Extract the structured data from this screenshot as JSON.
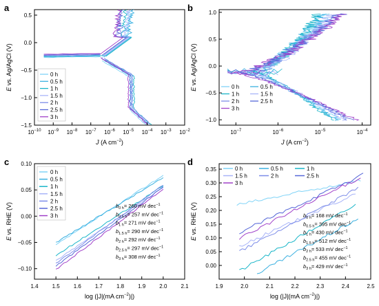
{
  "chart_data": [
    {
      "panel": "a",
      "type": "line",
      "xlabel_var": "J",
      "xlabel_unit": " (A cm",
      "xlabel_exp": "−2",
      "xlabel_close": ")",
      "ylabel_var": "E",
      "ylabel_rest": " vs. Ag/AgCl (V)",
      "x_scale": "log",
      "xlim": [
        1e-10,
        0.01
      ],
      "ylim": [
        -1.5,
        0.6
      ],
      "xticks": [
        -10,
        -9,
        -8,
        -7,
        -6,
        -5,
        -4,
        -3,
        -2
      ],
      "xtick_labels": [
        "10",
        "10",
        "10",
        "10",
        "10",
        "10",
        "10",
        "10",
        "10"
      ],
      "xtick_exps": [
        "−10",
        "−9",
        "−8",
        "−7",
        "−6",
        "−5",
        "−4",
        "−3",
        "−2"
      ],
      "yticks": [
        -1.5,
        -1.0,
        -0.5,
        0.0,
        0.5
      ],
      "ytick_labels": [
        "−1.5",
        "−1.0",
        "−0.5",
        "0.0",
        "0.5"
      ],
      "legend_position": "bottom-left",
      "legend_labels": [
        "0 h",
        "0.5 h",
        "1 h",
        "1.5 h",
        "2 h",
        "2.5 h",
        "3 h"
      ],
      "series_colors": [
        "#7fd3f7",
        "#3ab0e0",
        "#18b5c8",
        "#a8b4f8",
        "#7c8ce8",
        "#5566d8",
        "#a040c8"
      ],
      "series": [
        {
          "Ecorr": -0.27,
          "Jcorr_log": -6.4,
          "pass_log": -5.1
        },
        {
          "Ecorr": -0.26,
          "Jcorr_log": -6.3,
          "pass_log": -5.0
        },
        {
          "Ecorr": -0.25,
          "Jcorr_log": -6.2,
          "pass_log": -5.3
        },
        {
          "Ecorr": -0.24,
          "Jcorr_log": -6.3,
          "pass_log": -5.2
        },
        {
          "Ecorr": -0.22,
          "Jcorr_log": -6.3,
          "pass_log": -5.5
        },
        {
          "Ecorr": -0.23,
          "Jcorr_log": -6.4,
          "pass_log": -5.6
        },
        {
          "Ecorr": -0.21,
          "Jcorr_log": -6.5,
          "pass_log": -5.7
        }
      ]
    },
    {
      "panel": "b",
      "type": "line",
      "xlabel_var": "J",
      "xlabel_unit": " (A cm",
      "xlabel_exp": "−2",
      "xlabel_close": ")",
      "ylabel_var": "E",
      "ylabel_rest": " vs. Ag/AgCl (V)",
      "x_scale": "log",
      "xlim": [
        4e-08,
        0.00016
      ],
      "ylim": [
        -1.1,
        1.05
      ],
      "xticks": [
        -7,
        -6,
        -5,
        -4
      ],
      "xtick_labels": [
        "10",
        "10",
        "10",
        "10"
      ],
      "xtick_exps": [
        "−7",
        "−6",
        "−5",
        "−4"
      ],
      "yticks": [
        -1.0,
        -0.5,
        0.0,
        0.5,
        1.0
      ],
      "ytick_labels": [
        "−1.0",
        "−0.5",
        "0.0",
        "0.5",
        "1.0"
      ],
      "legend_position": "bottom-left",
      "legend_labels": [
        "0 h",
        "0.5 h",
        "1 h",
        "1.5 h",
        "2 h",
        "2.5 h",
        "3 h"
      ],
      "series_colors": [
        "#7fd3f7",
        "#3ab0e0",
        "#18b5c8",
        "#a8b4f8",
        "#7c8ce8",
        "#5566d8",
        "#a040c8"
      ],
      "series": [
        {
          "Ecorr": -0.12,
          "Jlow_log": -6.7,
          "Jtop_log": -4.8
        },
        {
          "Ecorr": -0.1,
          "Jlow_log": -6.6,
          "Jtop_log": -4.9
        },
        {
          "Ecorr": -0.11,
          "Jlow_log": -6.5,
          "Jtop_log": -5.0
        },
        {
          "Ecorr": -0.13,
          "Jlow_log": -6.6,
          "Jtop_log": -4.7
        },
        {
          "Ecorr": -0.14,
          "Jlow_log": -6.8,
          "Jtop_log": -4.6
        },
        {
          "Ecorr": -0.12,
          "Jlow_log": -6.9,
          "Jtop_log": -4.5
        },
        {
          "Ecorr": -0.13,
          "Jlow_log": -7.0,
          "Jtop_log": -4.4
        }
      ]
    },
    {
      "panel": "c",
      "type": "line",
      "xlabel_text": "log (|J|(mA cm",
      "xlabel_exp": "−2",
      "xlabel_close": ")|)",
      "ylabel_var": "E",
      "ylabel_rest": " vs. RHE (V)",
      "xlim": [
        1.4,
        2.1
      ],
      "ylim": [
        -0.12,
        0.1
      ],
      "xticks": [
        1.4,
        1.5,
        1.6,
        1.7,
        1.8,
        1.9,
        2.0,
        2.1
      ],
      "xtick_labels": [
        "1.4",
        "1.5",
        "1.6",
        "1.7",
        "1.8",
        "1.9",
        "2.0",
        "2.1"
      ],
      "yticks": [
        -0.1,
        -0.05,
        0.0,
        0.05,
        0.1
      ],
      "ytick_labels": [
        "−0.10",
        "−0.05",
        "0.00",
        "0.05",
        "0.10"
      ],
      "legend_position": "top-left",
      "legend_labels": [
        "0 h",
        "0.5 h",
        "1 h",
        "1.5 h",
        "2 h",
        "2.5 h",
        "3 h"
      ],
      "series_colors": [
        "#7fd3f7",
        "#3ab0e0",
        "#18b5c8",
        "#a8b4f8",
        "#7c8ce8",
        "#5566d8",
        "#a040c8"
      ],
      "series": [
        {
          "x": [
            1.5,
            2.0
          ],
          "y": [
            -0.055,
            0.078
          ]
        },
        {
          "x": [
            1.5,
            2.0
          ],
          "y": [
            -0.05,
            0.073
          ]
        },
        {
          "x": [
            1.5,
            2.0
          ],
          "y": [
            -0.075,
            0.058
          ]
        },
        {
          "x": [
            1.5,
            2.0
          ],
          "y": [
            -0.085,
            0.055
          ]
        },
        {
          "x": [
            1.5,
            2.0
          ],
          "y": [
            -0.09,
            0.06
          ]
        },
        {
          "x": [
            1.5,
            2.0
          ],
          "y": [
            -0.095,
            0.055
          ]
        },
        {
          "x": [
            1.5,
            2.0
          ],
          "y": [
            -0.102,
            0.052
          ]
        }
      ],
      "annotations": [
        {
          "sub": "0 h",
          "text": "= 260 mV dec",
          "exp": "−1"
        },
        {
          "sub": "0.5 h",
          "text": "= 257 mV dec",
          "exp": "−1"
        },
        {
          "sub": "1 h",
          "text": "= 271 mV dec",
          "exp": "−1"
        },
        {
          "sub": "1.5 h",
          "text": "= 290 mV dec",
          "exp": "−1"
        },
        {
          "sub": "2 h",
          "text": "= 292 mV dec",
          "exp": "−1"
        },
        {
          "sub": "2.5 h",
          "text": "= 297 mV dec",
          "exp": "−1"
        },
        {
          "sub": "3 h",
          "text": "= 308 mV dec",
          "exp": "−1"
        }
      ]
    },
    {
      "panel": "d",
      "type": "line",
      "xlabel_text": "log (|J|(mA cm",
      "xlabel_exp": "−2",
      "xlabel_close": ")|)",
      "ylabel_var": "E",
      "ylabel_rest": " vs. RHE (V)",
      "xlim": [
        1.9,
        2.5
      ],
      "ylim": [
        -0.05,
        0.37
      ],
      "xticks": [
        1.9,
        2.0,
        2.1,
        2.2,
        2.3,
        2.4,
        2.5
      ],
      "xtick_labels": [
        "1.9",
        "2.0",
        "2.1",
        "2.2",
        "2.3",
        "2.4",
        "2.5"
      ],
      "yticks": [
        0.0,
        0.05,
        0.1,
        0.15,
        0.2,
        0.25,
        0.3,
        0.35
      ],
      "ytick_labels": [
        "0.00",
        "0.05",
        "0.10",
        "0.15",
        "0.20",
        "0.25",
        "0.30",
        "0.35"
      ],
      "legend_position": "top",
      "legend_labels": [
        "0 h",
        "0.5 h",
        "1 h",
        "1.5 h",
        "2 h",
        "2.5 h",
        "3 h"
      ],
      "series_colors": [
        "#7fd3f7",
        "#3ab0e0",
        "#18b5c8",
        "#a8b4f8",
        "#7c8ce8",
        "#5566d8",
        "#a040c8"
      ],
      "series": [
        {
          "x": [
            1.97,
            2.46
          ],
          "y": [
            0.22,
            0.31
          ]
        },
        {
          "x": [
            2.05,
            2.45
          ],
          "y": [
            -0.03,
            0.17
          ]
        },
        {
          "x": [
            1.98,
            2.44
          ],
          "y": [
            -0.02,
            0.22
          ]
        },
        {
          "x": [
            1.98,
            2.44
          ],
          "y": [
            0.07,
            0.26
          ]
        },
        {
          "x": [
            1.98,
            2.45
          ],
          "y": [
            0.05,
            0.28
          ]
        },
        {
          "x": [
            1.98,
            2.47
          ],
          "y": [
            0.12,
            0.33
          ]
        },
        {
          "x": [
            1.98,
            2.46
          ],
          "y": [
            0.1,
            0.32
          ]
        }
      ],
      "annotations": [
        {
          "sub": "0 h",
          "text": "= 168 mV dec",
          "exp": "−1"
        },
        {
          "sub": "0.5 h",
          "text": "= 395 mV dec",
          "exp": "−1"
        },
        {
          "sub": "1 h",
          "text": "= 430 mV dec",
          "exp": "−1"
        },
        {
          "sub": "1.5 h",
          "text": "= 512 mV dec",
          "exp": "−1"
        },
        {
          "sub": "2 h",
          "text": "= 533 mV dec",
          "exp": "−1"
        },
        {
          "sub": "2.5 h",
          "text": "= 455 mV dec",
          "exp": "−1"
        },
        {
          "sub": "3 h",
          "text": "= 429 mV dec",
          "exp": "−1"
        }
      ]
    }
  ]
}
